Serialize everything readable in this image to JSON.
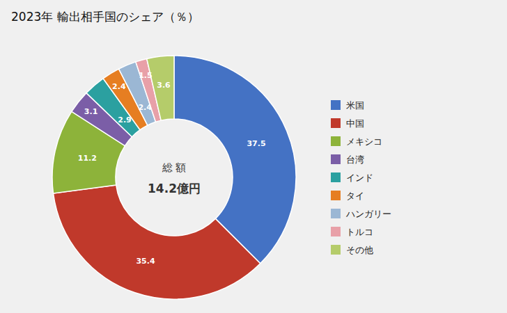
{
  "chart_data": {
    "type": "donut",
    "title": "2023年 輸出相手国のシェア（％）",
    "categories": [
      "米国",
      "中国",
      "メキシコ",
      "台湾",
      "インド",
      "タイ",
      "ハンガリー",
      "トルコ",
      "その他"
    ],
    "values": [
      37.5,
      35.4,
      11.2,
      3.1,
      2.9,
      2.4,
      2.4,
      1.5,
      3.6
    ],
    "colors": [
      "#4472C4",
      "#C0392B",
      "#8DB33A",
      "#7B5EA7",
      "#2BA0A0",
      "#E67E22",
      "#9BB7D4",
      "#E8A0A8",
      "#B5CC6A"
    ],
    "data_labels": true,
    "legend": "right",
    "annotations": [
      "総 額",
      "14.2億円"
    ]
  }
}
